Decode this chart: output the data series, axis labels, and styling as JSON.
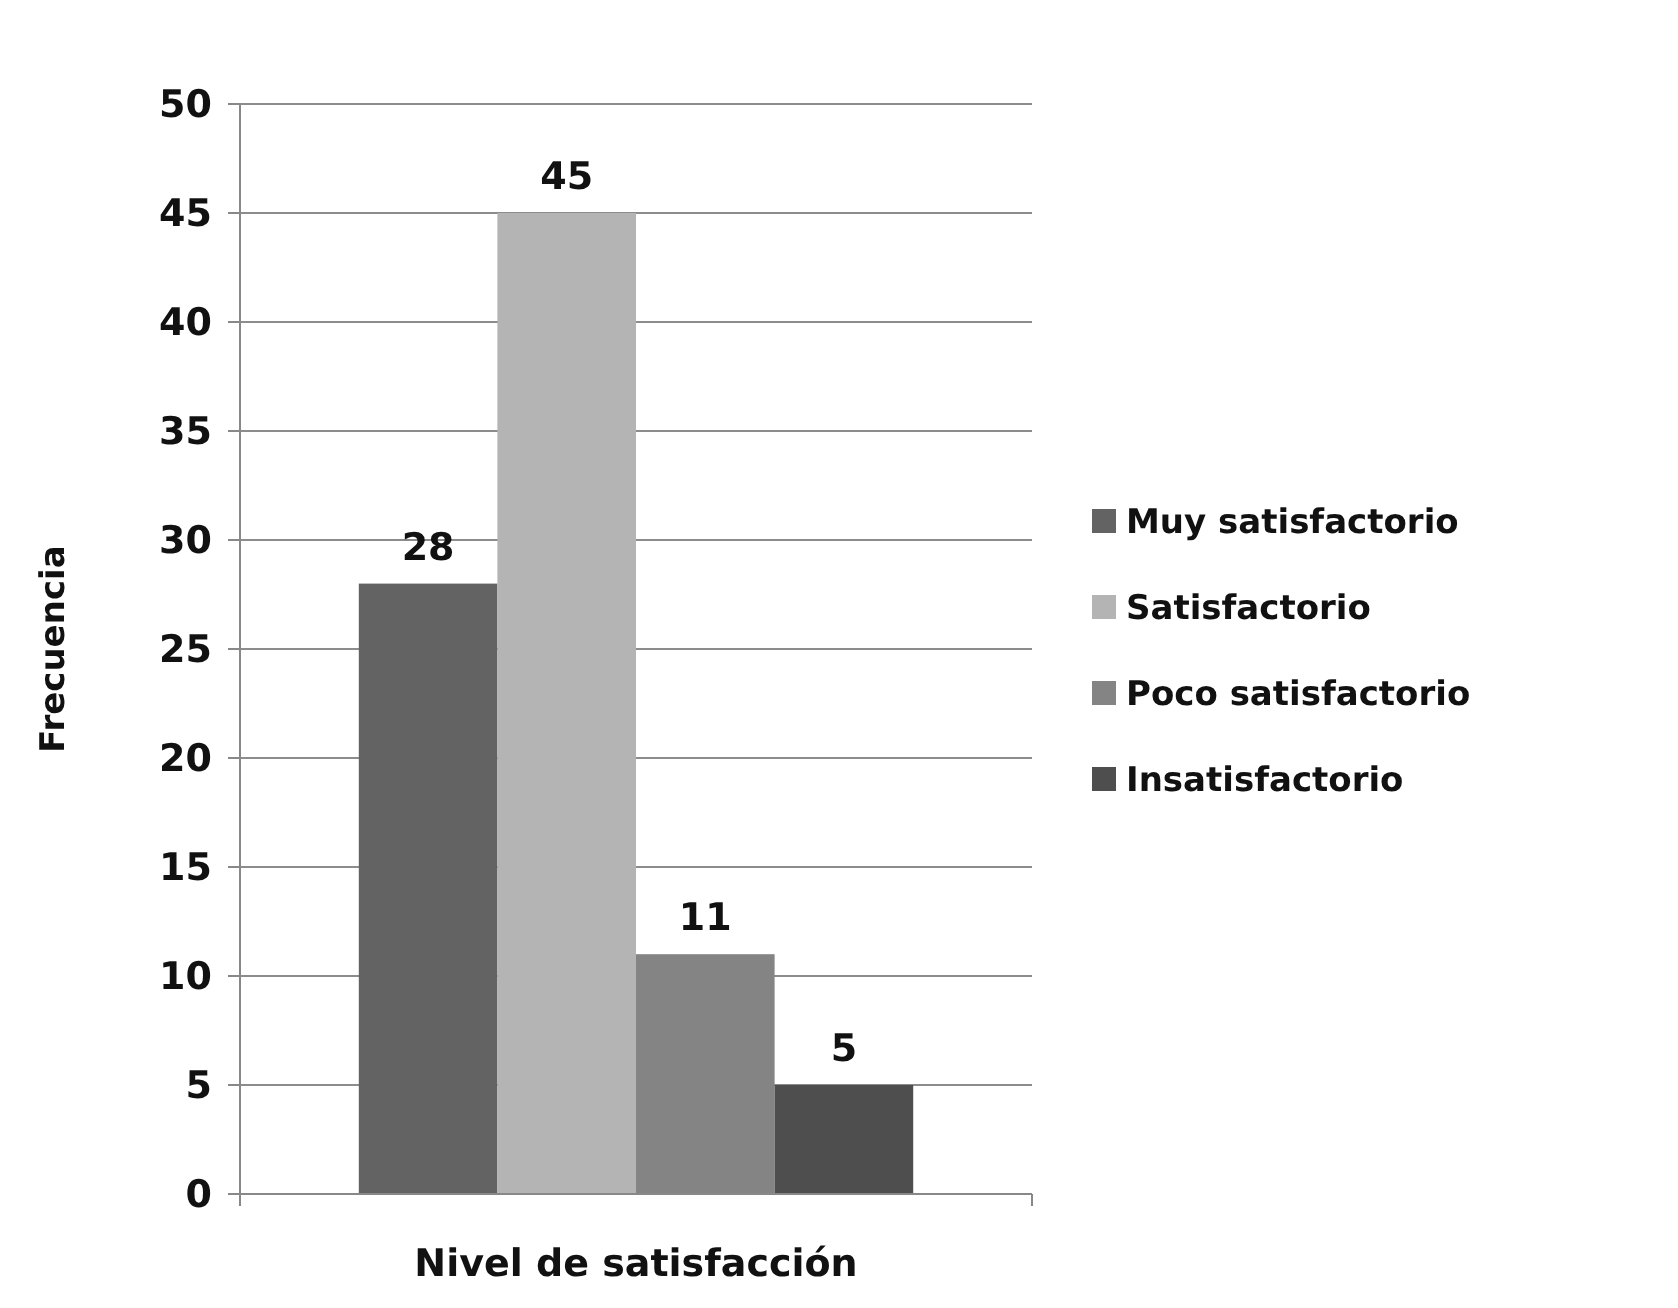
{
  "chart_data": {
    "type": "bar",
    "xlabel": "Nivel de satisfacción",
    "ylabel": "Frecuencia",
    "categories": [
      null
    ],
    "series": [
      {
        "name": "Muy satisfactorio",
        "color": "#636363",
        "values": [
          28
        ]
      },
      {
        "name": "Satisfactorio",
        "color": "#b4b4b4",
        "values": [
          45
        ]
      },
      {
        "name": "Poco satisfactorio",
        "color": "#848484",
        "values": [
          11
        ]
      },
      {
        "name": "Insatisfactorio",
        "color": "#4e4e4e",
        "values": [
          5
        ]
      }
    ],
    "ylim": [
      0,
      50
    ],
    "yticks": [
      0,
      5,
      10,
      15,
      20,
      25,
      30,
      35,
      40,
      45,
      50
    ],
    "grid": "y",
    "legend": "right",
    "data_labels": true
  }
}
